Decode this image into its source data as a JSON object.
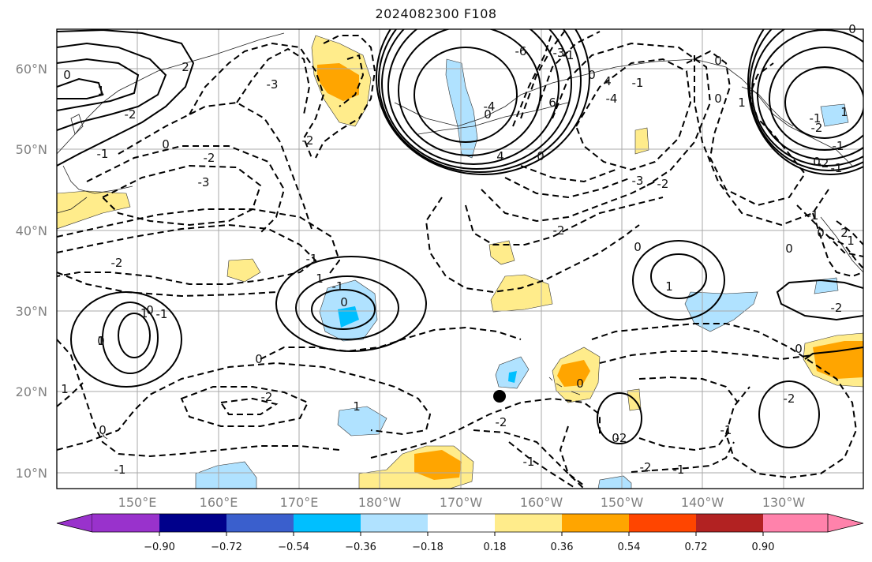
{
  "title": "2024082300 F108",
  "lat_labels": [
    "60°N",
    "50°N",
    "40°N",
    "30°N",
    "20°N",
    "10°N"
  ],
  "lon_labels": [
    "150°E",
    "160°E",
    "170°E",
    "180°W",
    "170°W",
    "160°W",
    "150°W",
    "140°W",
    "130°W"
  ],
  "colorbar": {
    "ticks": [
      "−0.90",
      "−0.72",
      "−0.54",
      "−0.36",
      "−0.18",
      "0.18",
      "0.36",
      "0.54",
      "0.72",
      "0.90"
    ],
    "colors": [
      "#9932cc",
      "#00008b",
      "#3a5fcd",
      "#00bfff",
      "#b0e2ff",
      "#ffffff",
      "#ffec8b",
      "#ffa500",
      "#ff4500",
      "#b22222",
      "#ff82ab"
    ]
  },
  "contour_labels": [
    "-2",
    "-3",
    "-2",
    "-1",
    "-2",
    "0",
    "1",
    "-2",
    "-1",
    "0",
    "-3",
    "-2",
    "-4",
    "-6",
    "-3",
    "-4",
    "0",
    "4",
    "0",
    "-2",
    "-3",
    "-2",
    "-1",
    "0",
    "1",
    "0",
    "2",
    "-1",
    "0",
    "-2",
    "-1",
    "-2",
    "-1",
    "0",
    "1",
    "0",
    "1",
    "-1",
    "4",
    "6",
    "-1",
    "0",
    "1",
    "2",
    "-1",
    "-2",
    "-2",
    "0",
    "1",
    "-2",
    "-2",
    "0",
    "-1",
    "-2",
    "0",
    "1",
    "-1",
    "0",
    "-1",
    "0",
    "1",
    "-1",
    "0",
    "1",
    "0",
    "0",
    "-1",
    "-1",
    "0",
    "0"
  ],
  "marker": "station-dot"
}
